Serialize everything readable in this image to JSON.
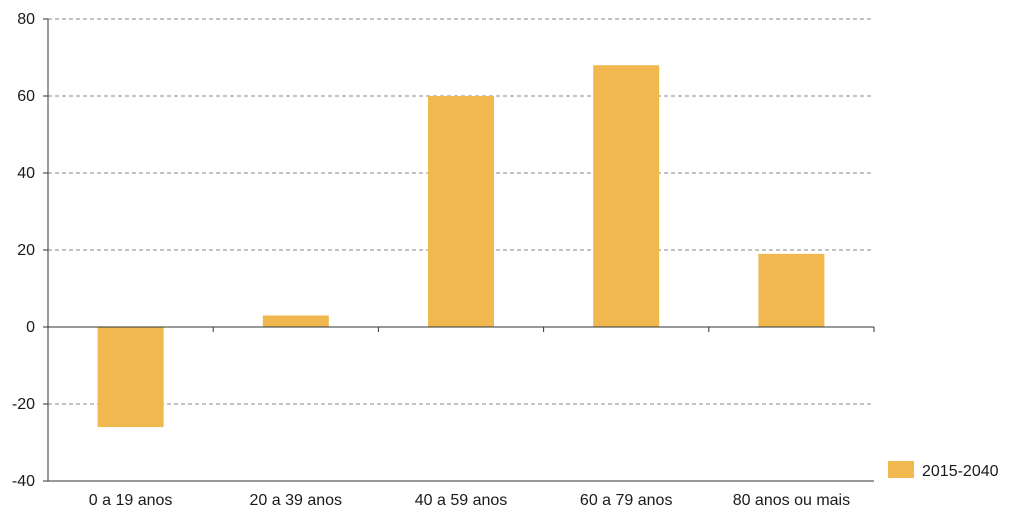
{
  "chart_data": {
    "type": "bar",
    "title": "",
    "xlabel": "",
    "ylabel": "",
    "categories": [
      "0 a 19 anos",
      "20 a 39 anos",
      "40 a 59 anos",
      "60 a 79 anos",
      "80 anos ou mais"
    ],
    "series": [
      {
        "name": "2015-2040",
        "values": [
          -26,
          3,
          60,
          68,
          19
        ],
        "color": "#f0b84f"
      }
    ],
    "ylim": [
      -40,
      80
    ],
    "yticks": [
      -40,
      -20,
      0,
      20,
      40,
      60,
      80
    ],
    "ytick_labels": [
      "-40",
      "-20",
      "0",
      "20",
      "40",
      "60",
      "80"
    ],
    "grid": true,
    "legend_position": "bottom-right"
  }
}
